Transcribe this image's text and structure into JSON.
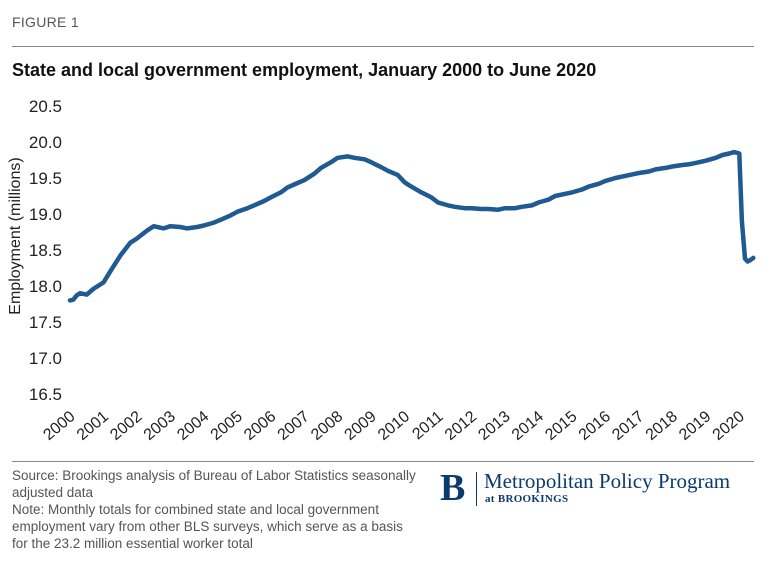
{
  "figure_label": "FIGURE 1",
  "chart_data": {
    "type": "line",
    "title": "State and local government employment, January 2000 to June 2020",
    "xlabel": "",
    "ylabel": "Employment (millions)",
    "ylim": [
      16.5,
      20.5
    ],
    "yticks": [
      "16.5",
      "17.0",
      "17.5",
      "18.0",
      "18.5",
      "19.0",
      "19.5",
      "20.0",
      "20.5"
    ],
    "xlim": [
      2000,
      2020.5
    ],
    "xticks": [
      "2000",
      "2001",
      "2002",
      "2003",
      "2004",
      "2005",
      "2006",
      "2007",
      "2008",
      "2009",
      "2010",
      "2011",
      "2012",
      "2013",
      "2014",
      "2015",
      "2016",
      "2017",
      "2018",
      "2019",
      "2020"
    ],
    "grid": false,
    "series": [
      {
        "name": "State and local government employment",
        "color": "#1f5a92",
        "x": [
          2000.0,
          2000.1,
          2000.2,
          2000.3,
          2000.5,
          2000.7,
          2001.0,
          2001.2,
          2001.5,
          2001.8,
          2002.0,
          2002.3,
          2002.5,
          2002.8,
          2003.0,
          2003.3,
          2003.5,
          2003.8,
          2004.0,
          2004.3,
          2004.5,
          2004.8,
          2005.0,
          2005.3,
          2005.5,
          2005.8,
          2006.0,
          2006.3,
          2006.5,
          2006.8,
          2007.0,
          2007.3,
          2007.5,
          2007.8,
          2008.0,
          2008.3,
          2008.5,
          2008.8,
          2009.0,
          2009.3,
          2009.5,
          2009.8,
          2010.0,
          2010.2,
          2010.5,
          2010.8,
          2011.0,
          2011.3,
          2011.5,
          2011.8,
          2012.0,
          2012.3,
          2012.5,
          2012.8,
          2013.0,
          2013.3,
          2013.5,
          2013.8,
          2014.0,
          2014.3,
          2014.5,
          2014.8,
          2015.0,
          2015.3,
          2015.5,
          2015.8,
          2016.0,
          2016.3,
          2016.5,
          2016.8,
          2017.0,
          2017.3,
          2017.5,
          2017.8,
          2018.0,
          2018.3,
          2018.5,
          2018.8,
          2019.0,
          2019.3,
          2019.5,
          2019.7,
          2019.85,
          2020.0,
          2020.08,
          2020.17,
          2020.25,
          2020.33,
          2020.42
        ],
        "values": [
          17.8,
          17.81,
          17.87,
          17.9,
          17.88,
          17.96,
          18.05,
          18.2,
          18.42,
          18.6,
          18.66,
          18.77,
          18.83,
          18.8,
          18.83,
          18.82,
          18.8,
          18.82,
          18.84,
          18.88,
          18.92,
          18.98,
          19.03,
          19.08,
          19.12,
          19.18,
          19.23,
          19.3,
          19.37,
          19.43,
          19.47,
          19.56,
          19.64,
          19.72,
          19.78,
          19.8,
          19.78,
          19.76,
          19.72,
          19.65,
          19.6,
          19.54,
          19.44,
          19.38,
          19.3,
          19.23,
          19.16,
          19.12,
          19.1,
          19.08,
          19.08,
          19.07,
          19.07,
          19.06,
          19.08,
          19.08,
          19.1,
          19.12,
          19.16,
          19.2,
          19.25,
          19.28,
          19.3,
          19.34,
          19.38,
          19.42,
          19.46,
          19.5,
          19.52,
          19.55,
          19.57,
          19.59,
          19.62,
          19.64,
          19.66,
          19.68,
          19.69,
          19.72,
          19.74,
          19.78,
          19.82,
          19.84,
          19.86,
          19.84,
          18.9,
          18.38,
          18.34,
          18.36,
          18.39
        ]
      }
    ]
  },
  "notes": {
    "source": "Source: Brookings analysis of Bureau of Labor Statistics seasonally adjusted data",
    "note": "Note: Monthly totals for combined state and local government employment vary from other BLS surveys, which serve as a basis for the 23.2 million essential worker total"
  },
  "brand": {
    "mark": "B",
    "name": "Metropolitan Policy Program",
    "sub": "at BROOKINGS"
  }
}
